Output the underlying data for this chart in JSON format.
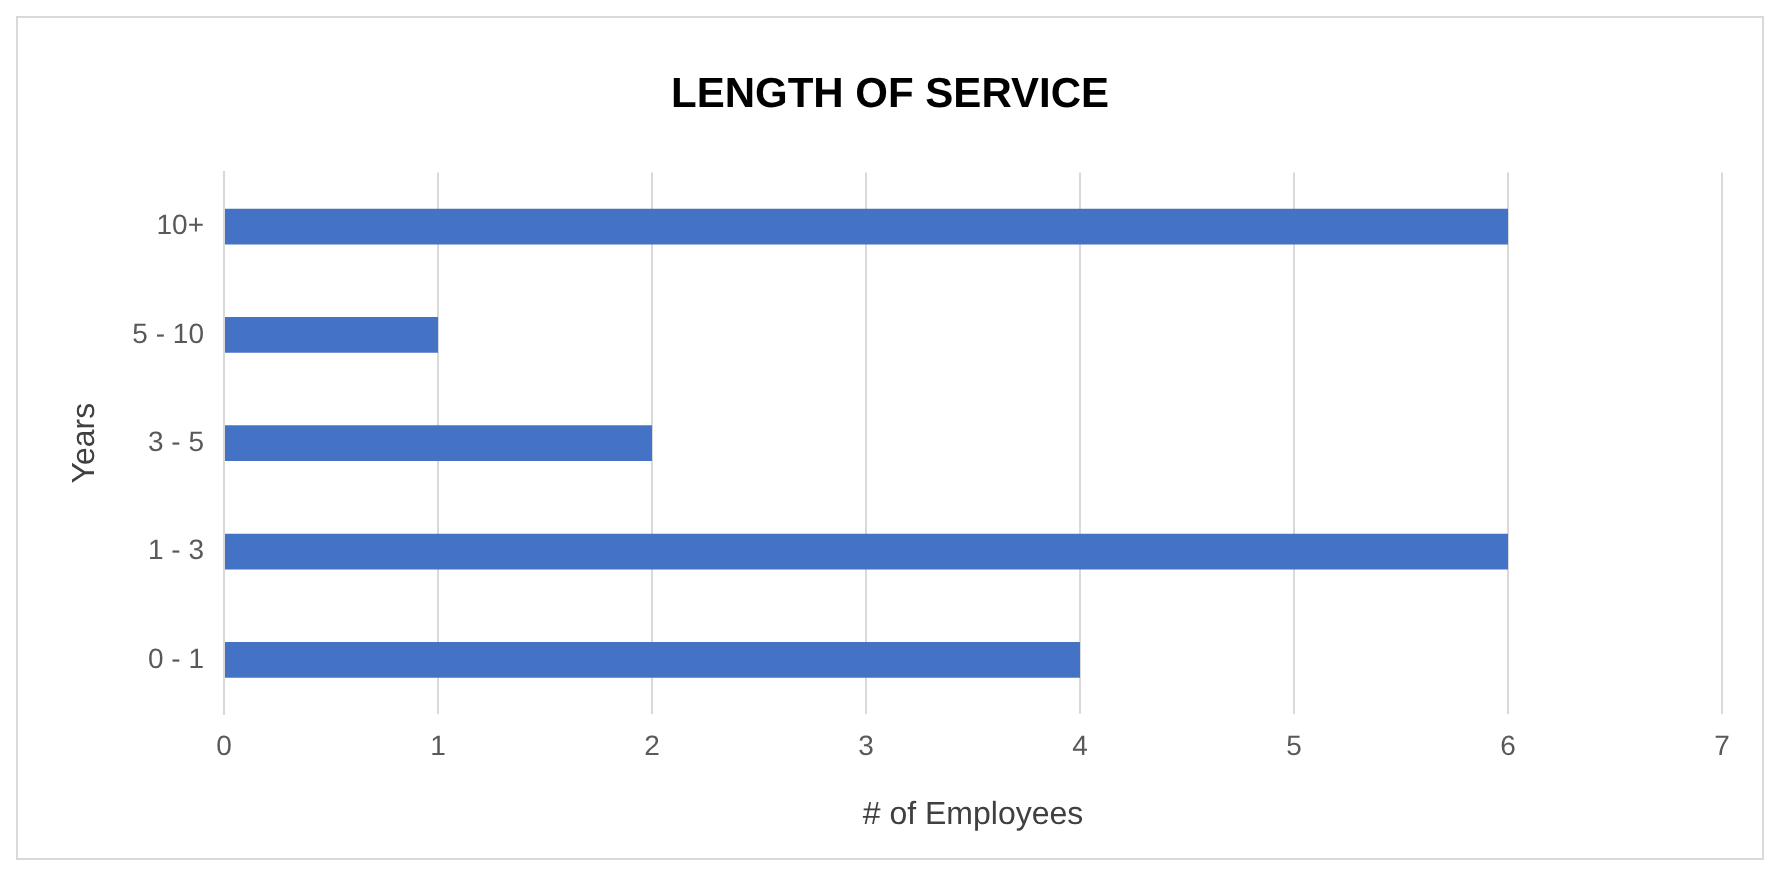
{
  "chart_data": {
    "type": "bar",
    "orientation": "horizontal",
    "title": "LENGTH OF SERVICE",
    "xlabel": "# of Employees",
    "ylabel": "Years",
    "categories": [
      "10+",
      "5 - 10",
      "3 - 5",
      "1 - 3",
      "0 - 1"
    ],
    "values": [
      6,
      1,
      2,
      6,
      4
    ],
    "color": "#4472c4",
    "xlim": [
      0,
      7
    ],
    "xticks": [
      0,
      1,
      2,
      3,
      4,
      5,
      6,
      7
    ],
    "grid": "x",
    "legend": false
  }
}
